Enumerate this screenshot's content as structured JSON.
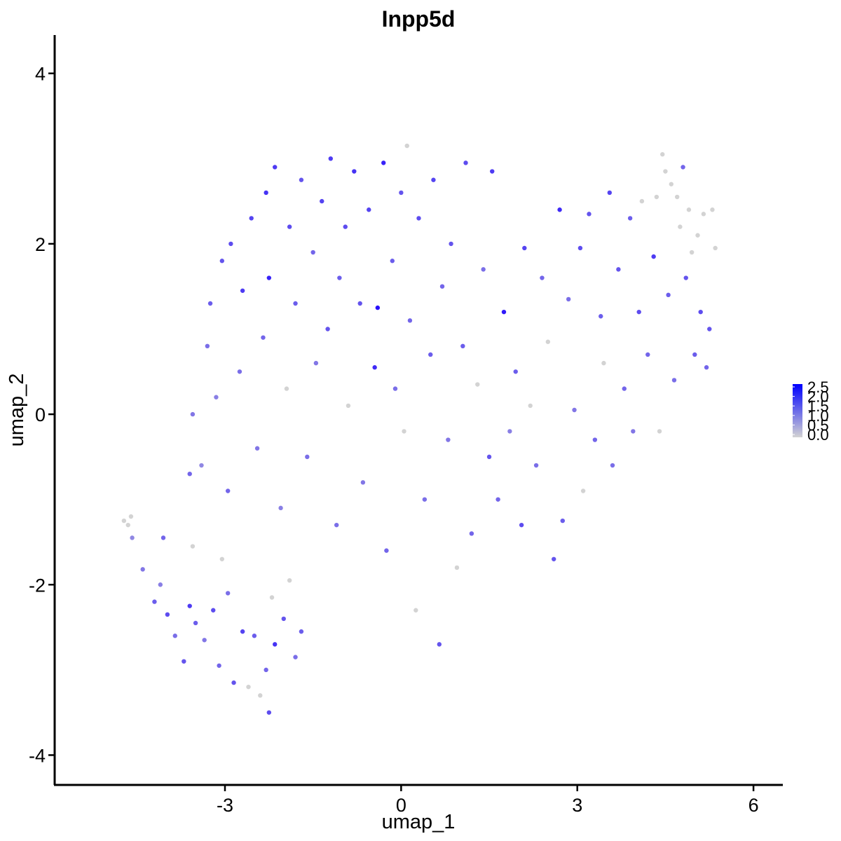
{
  "chart_data": {
    "type": "scatter",
    "title": "Inpp5d",
    "xlabel": "umap_1",
    "ylabel": "umap_2",
    "xlim": [
      -5.9,
      6.5
    ],
    "ylim": [
      -4.35,
      4.45
    ],
    "x_ticks": [
      -3,
      0,
      3,
      6
    ],
    "x_tick_labels": [
      "-3",
      "0",
      "3",
      "6"
    ],
    "y_ticks": [
      -4,
      -2,
      0,
      2,
      4
    ],
    "y_tick_labels": [
      "-4",
      "-2",
      "0",
      "2",
      "4"
    ],
    "grid": false,
    "legend": {
      "placement": "right",
      "type": "colorbar",
      "title": "",
      "min": 0.0,
      "max": 2.5,
      "labels": [
        "2.5",
        "2.0",
        "1.5",
        "1.0",
        "0.5",
        "0.0"
      ],
      "low_color": "#d3d3d3",
      "high_color": "#0000ff"
    },
    "point_color_scale": {
      "low": "#d3d3d3",
      "high": "#1a00ff"
    },
    "series": [
      {
        "values": [
          [
            -4.72,
            -1.25,
            0.0
          ],
          [
            -4.65,
            -1.3,
            0.0
          ],
          [
            -4.6,
            -1.2,
            0.0
          ],
          [
            -4.58,
            -1.45,
            0.9
          ],
          [
            -4.4,
            -1.82,
            1.1
          ],
          [
            -4.2,
            -2.2,
            1.4
          ],
          [
            -4.1,
            -2.0,
            1.0
          ],
          [
            -4.05,
            -1.45,
            1.3
          ],
          [
            -3.98,
            -2.35,
            1.6
          ],
          [
            -3.85,
            -2.6,
            1.2
          ],
          [
            -3.7,
            -2.9,
            1.5
          ],
          [
            -3.6,
            -2.25,
            1.8
          ],
          [
            -3.55,
            -1.55,
            0.0
          ],
          [
            -3.5,
            -2.45,
            1.4
          ],
          [
            -3.35,
            -2.65,
            1.1
          ],
          [
            -3.2,
            -2.3,
            1.6
          ],
          [
            -3.1,
            -2.95,
            1.3
          ],
          [
            -3.05,
            -1.7,
            0.0
          ],
          [
            -2.95,
            -2.1,
            1.2
          ],
          [
            -2.85,
            -3.15,
            1.5
          ],
          [
            -2.7,
            -2.55,
            1.7
          ],
          [
            -2.6,
            -3.2,
            0.0
          ],
          [
            -2.5,
            -2.6,
            1.4
          ],
          [
            -2.4,
            -3.3,
            0.0
          ],
          [
            -2.3,
            -3.0,
            1.3
          ],
          [
            -2.25,
            -3.5,
            1.6
          ],
          [
            -2.2,
            -2.15,
            0.0
          ],
          [
            -2.15,
            -2.7,
            1.9
          ],
          [
            -2.0,
            -2.4,
            1.5
          ],
          [
            -1.9,
            -1.95,
            0.0
          ],
          [
            -1.8,
            -2.85,
            1.2
          ],
          [
            -1.7,
            -2.55,
            1.4
          ],
          [
            -3.6,
            -0.7,
            1.3
          ],
          [
            -3.55,
            0.0,
            1.1
          ],
          [
            -3.4,
            -0.6,
            0.9
          ],
          [
            -3.3,
            0.8,
            1.2
          ],
          [
            -3.25,
            1.3,
            1.4
          ],
          [
            -3.15,
            0.2,
            1.0
          ],
          [
            -3.05,
            1.8,
            1.5
          ],
          [
            -2.95,
            -0.9,
            1.3
          ],
          [
            -2.9,
            2.0,
            1.6
          ],
          [
            -2.75,
            0.5,
            1.2
          ],
          [
            -2.7,
            1.45,
            1.8
          ],
          [
            -2.55,
            2.3,
            1.7
          ],
          [
            -2.45,
            -0.4,
            1.1
          ],
          [
            -2.35,
            0.9,
            1.3
          ],
          [
            -2.3,
            2.6,
            1.9
          ],
          [
            -2.25,
            1.6,
            2.1
          ],
          [
            -2.15,
            2.9,
            1.8
          ],
          [
            -2.05,
            -1.1,
            1.0
          ],
          [
            -1.95,
            0.3,
            0.0
          ],
          [
            -1.9,
            2.2,
            1.6
          ],
          [
            -1.8,
            1.3,
            1.4
          ],
          [
            -1.7,
            2.75,
            1.5
          ],
          [
            -1.6,
            -0.5,
            1.2
          ],
          [
            -1.5,
            1.9,
            1.3
          ],
          [
            -1.45,
            0.6,
            1.1
          ],
          [
            -1.35,
            2.5,
            1.7
          ],
          [
            -1.25,
            1.0,
            1.5
          ],
          [
            -1.2,
            3.0,
            1.8
          ],
          [
            -1.1,
            -1.3,
            1.2
          ],
          [
            -1.05,
            1.6,
            1.4
          ],
          [
            -0.95,
            2.2,
            1.6
          ],
          [
            -0.9,
            0.1,
            0.0
          ],
          [
            -0.8,
            2.85,
            1.9
          ],
          [
            -0.7,
            1.3,
            1.5
          ],
          [
            -0.65,
            -0.8,
            1.1
          ],
          [
            -0.55,
            2.4,
            1.7
          ],
          [
            -0.45,
            0.55,
            2.0
          ],
          [
            -0.4,
            1.25,
            2.3
          ],
          [
            -0.3,
            2.95,
            2.1
          ],
          [
            -0.25,
            -1.6,
            1.3
          ],
          [
            -0.15,
            1.8,
            1.4
          ],
          [
            -0.1,
            0.3,
            1.2
          ],
          [
            0.0,
            2.6,
            1.5
          ],
          [
            0.05,
            -0.2,
            0.0
          ],
          [
            0.1,
            3.15,
            0.0
          ],
          [
            0.15,
            1.1,
            1.3
          ],
          [
            0.25,
            -2.3,
            0.0
          ],
          [
            0.3,
            2.3,
            1.6
          ],
          [
            0.4,
            -1.0,
            1.2
          ],
          [
            0.5,
            0.7,
            1.4
          ],
          [
            0.55,
            2.75,
            1.7
          ],
          [
            0.65,
            -2.7,
            1.5
          ],
          [
            0.7,
            1.5,
            1.3
          ],
          [
            0.8,
            -0.3,
            1.1
          ],
          [
            0.85,
            2.0,
            1.5
          ],
          [
            0.95,
            -1.8,
            0.0
          ],
          [
            1.05,
            0.8,
            1.4
          ],
          [
            1.1,
            2.95,
            1.6
          ],
          [
            1.2,
            -1.4,
            1.3
          ],
          [
            1.3,
            0.35,
            0.0
          ],
          [
            1.4,
            1.7,
            1.2
          ],
          [
            1.5,
            -0.5,
            1.5
          ],
          [
            1.55,
            2.85,
            1.8
          ],
          [
            1.65,
            -1.0,
            1.3
          ],
          [
            1.75,
            1.2,
            2.2
          ],
          [
            1.85,
            -0.2,
            1.0
          ],
          [
            1.95,
            0.5,
            1.4
          ],
          [
            2.05,
            -1.3,
            1.6
          ],
          [
            2.1,
            1.95,
            1.7
          ],
          [
            2.2,
            0.1,
            0.0
          ],
          [
            2.3,
            -0.6,
            1.2
          ],
          [
            2.4,
            1.6,
            1.3
          ],
          [
            2.5,
            0.85,
            0.0
          ],
          [
            2.6,
            -1.7,
            1.5
          ],
          [
            2.7,
            2.4,
            2.0
          ],
          [
            2.75,
            -1.25,
            1.4
          ],
          [
            2.85,
            1.35,
            1.2
          ],
          [
            2.95,
            0.05,
            1.1
          ],
          [
            3.05,
            1.95,
            1.6
          ],
          [
            3.1,
            -0.9,
            0.0
          ],
          [
            3.2,
            2.35,
            1.5
          ],
          [
            3.3,
            -0.3,
            1.3
          ],
          [
            3.4,
            1.15,
            1.4
          ],
          [
            3.45,
            0.6,
            0.0
          ],
          [
            3.55,
            2.6,
            1.7
          ],
          [
            3.6,
            -0.6,
            1.2
          ],
          [
            3.7,
            1.7,
            1.5
          ],
          [
            3.8,
            0.3,
            1.3
          ],
          [
            3.9,
            2.3,
            1.4
          ],
          [
            3.95,
            -0.2,
            1.1
          ],
          [
            4.05,
            1.2,
            1.6
          ],
          [
            4.1,
            2.5,
            0.0
          ],
          [
            4.2,
            0.7,
            1.3
          ],
          [
            4.3,
            1.85,
            1.8
          ],
          [
            4.35,
            2.55,
            0.0
          ],
          [
            4.4,
            -0.2,
            0.0
          ],
          [
            4.45,
            3.05,
            0.0
          ],
          [
            4.5,
            2.85,
            0.0
          ],
          [
            4.55,
            1.4,
            1.4
          ],
          [
            4.6,
            2.7,
            0.0
          ],
          [
            4.65,
            0.4,
            1.2
          ],
          [
            4.7,
            2.55,
            0.0
          ],
          [
            4.75,
            2.2,
            0.0
          ],
          [
            4.8,
            2.9,
            1.3
          ],
          [
            4.85,
            1.6,
            1.5
          ],
          [
            4.9,
            2.4,
            0.0
          ],
          [
            4.95,
            1.9,
            0.0
          ],
          [
            5.0,
            0.7,
            1.4
          ],
          [
            5.05,
            2.1,
            0.0
          ],
          [
            5.1,
            1.2,
            1.6
          ],
          [
            5.15,
            2.35,
            0.0
          ],
          [
            5.2,
            0.55,
            1.3
          ],
          [
            5.25,
            1.0,
            1.5
          ],
          [
            5.3,
            2.4,
            0.0
          ],
          [
            5.35,
            1.95,
            0.0
          ]
        ]
      }
    ]
  }
}
